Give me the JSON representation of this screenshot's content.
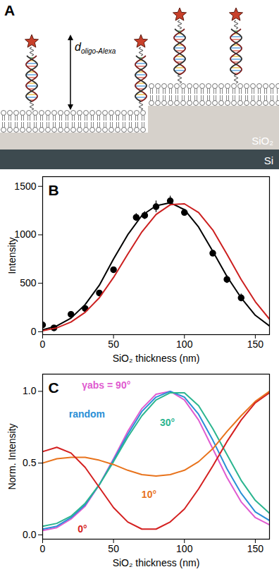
{
  "diagram": {
    "panel": "A",
    "labels": {
      "distance": {
        "symbol": "d",
        "subscript": "oligo-Alexa"
      },
      "layer_top": "SiO₂",
      "layer_bottom": "Si"
    }
  },
  "chart_data": [
    {
      "title": "B",
      "type": "scatter",
      "xlabel": "SiO₂ thickness (nm)",
      "ylabel": "Intensity",
      "xlim": [
        0,
        160
      ],
      "ylim": [
        -30,
        1600
      ],
      "xticks": [
        0,
        50,
        100,
        150
      ],
      "yticks": [
        0,
        500,
        1000,
        1500
      ],
      "series": [
        {
          "type": "scatter",
          "color": "#000000",
          "marker": "circle",
          "x": [
            0,
            8,
            20,
            30,
            40,
            50,
            66,
            72,
            80,
            90,
            100,
            120,
            130,
            140
          ],
          "values": [
            70,
            40,
            180,
            240,
            400,
            640,
            1180,
            1200,
            1290,
            1350,
            1230,
            810,
            540,
            350
          ],
          "errors": [
            40,
            20,
            20,
            20,
            20,
            20,
            40,
            40,
            60,
            50,
            30,
            30,
            40,
            40
          ]
        },
        {
          "type": "line",
          "color": "#000000",
          "x": [
            0,
            10,
            20,
            30,
            40,
            50,
            60,
            70,
            80,
            90,
            100,
            110,
            120,
            130,
            140,
            150,
            160
          ],
          "values": [
            20,
            60,
            140,
            280,
            480,
            750,
            1000,
            1200,
            1300,
            1330,
            1260,
            1080,
            830,
            570,
            350,
            170,
            60
          ]
        },
        {
          "type": "line",
          "color": "#cc1f1f",
          "x": [
            0,
            10,
            20,
            30,
            40,
            50,
            60,
            70,
            80,
            90,
            100,
            110,
            120,
            130,
            140,
            150,
            160
          ],
          "values": [
            10,
            40,
            100,
            200,
            350,
            560,
            800,
            1030,
            1210,
            1310,
            1320,
            1230,
            1050,
            800,
            540,
            310,
            130
          ]
        }
      ]
    },
    {
      "title": "C",
      "type": "line",
      "xlabel": "SiO₂ thickness (nm)",
      "ylabel": "Norm. Intensity",
      "xlim": [
        0,
        160
      ],
      "ylim": [
        -0.03,
        1.12
      ],
      "xticks": [
        0,
        50,
        100,
        150
      ],
      "yticks": [
        {
          "value": 0,
          "label": "0.0"
        },
        {
          "value": 0.5,
          "label": "0.5"
        },
        {
          "value": 1,
          "label": "1.0"
        }
      ],
      "series": [
        {
          "name": "γabs = 90°",
          "color": "#e05bd0",
          "x": [
            0,
            10,
            20,
            30,
            40,
            50,
            60,
            70,
            80,
            90,
            100,
            110,
            120,
            130,
            140,
            150,
            160
          ],
          "values": [
            0.03,
            0.05,
            0.11,
            0.2,
            0.35,
            0.53,
            0.72,
            0.88,
            0.98,
            1.0,
            0.94,
            0.8,
            0.6,
            0.4,
            0.23,
            0.12,
            0.07
          ]
        },
        {
          "name": "random",
          "color": "#2a8fd6",
          "x": [
            0,
            10,
            20,
            30,
            40,
            50,
            60,
            70,
            80,
            90,
            100,
            110,
            120,
            130,
            140,
            150,
            160
          ],
          "values": [
            0.04,
            0.06,
            0.12,
            0.21,
            0.35,
            0.52,
            0.7,
            0.86,
            0.96,
            1.0,
            0.96,
            0.84,
            0.66,
            0.46,
            0.29,
            0.16,
            0.1
          ]
        },
        {
          "name": "30°",
          "color": "#2bb58f",
          "x": [
            0,
            10,
            20,
            30,
            40,
            50,
            60,
            70,
            80,
            90,
            100,
            110,
            120,
            130,
            140,
            150,
            160
          ],
          "values": [
            0.06,
            0.08,
            0.13,
            0.22,
            0.35,
            0.51,
            0.68,
            0.83,
            0.94,
            0.99,
            0.99,
            0.9,
            0.74,
            0.56,
            0.38,
            0.24,
            0.15
          ]
        },
        {
          "name": "10°",
          "color": "#e8731c",
          "x": [
            0,
            10,
            20,
            30,
            40,
            50,
            60,
            70,
            80,
            90,
            100,
            110,
            120,
            130,
            140,
            150,
            160
          ],
          "values": [
            0.5,
            0.53,
            0.54,
            0.54,
            0.52,
            0.49,
            0.45,
            0.42,
            0.41,
            0.42,
            0.45,
            0.51,
            0.6,
            0.72,
            0.83,
            0.93,
            1.0
          ]
        },
        {
          "name": "0°",
          "color": "#d42020",
          "x": [
            0,
            10,
            20,
            30,
            40,
            50,
            60,
            70,
            80,
            90,
            100,
            110,
            120,
            130,
            140,
            150,
            160
          ],
          "values": [
            0.58,
            0.61,
            0.57,
            0.47,
            0.33,
            0.19,
            0.09,
            0.04,
            0.04,
            0.09,
            0.18,
            0.32,
            0.48,
            0.65,
            0.8,
            0.92,
            0.99
          ]
        }
      ]
    }
  ]
}
